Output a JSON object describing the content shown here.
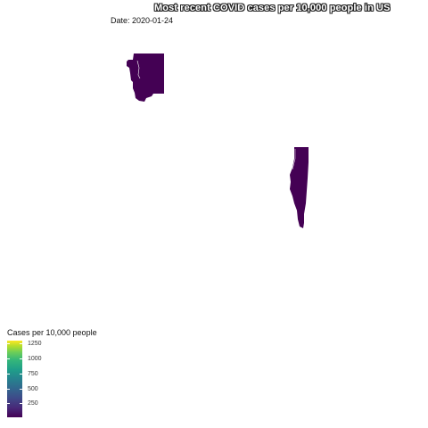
{
  "header": {
    "title": "Most recent COVID cases per 10,000 people in US",
    "date": "Date: 2020-01-24"
  },
  "legend": {
    "title": "Cases per 10,000 people",
    "ticks": [
      {
        "value": 1250,
        "label": "1250"
      },
      {
        "value": 1000,
        "label": "1000"
      },
      {
        "value": 750,
        "label": "750"
      },
      {
        "value": 500,
        "label": "500"
      },
      {
        "value": 250,
        "label": "250"
      }
    ],
    "scale": "viridis",
    "colors": {
      "low": "#440154",
      "high": "#fde725"
    }
  },
  "map": {
    "regions": [
      {
        "name": "Washington",
        "fill": "#440154"
      },
      {
        "name": "Illinois",
        "fill": "#440154"
      }
    ]
  }
}
